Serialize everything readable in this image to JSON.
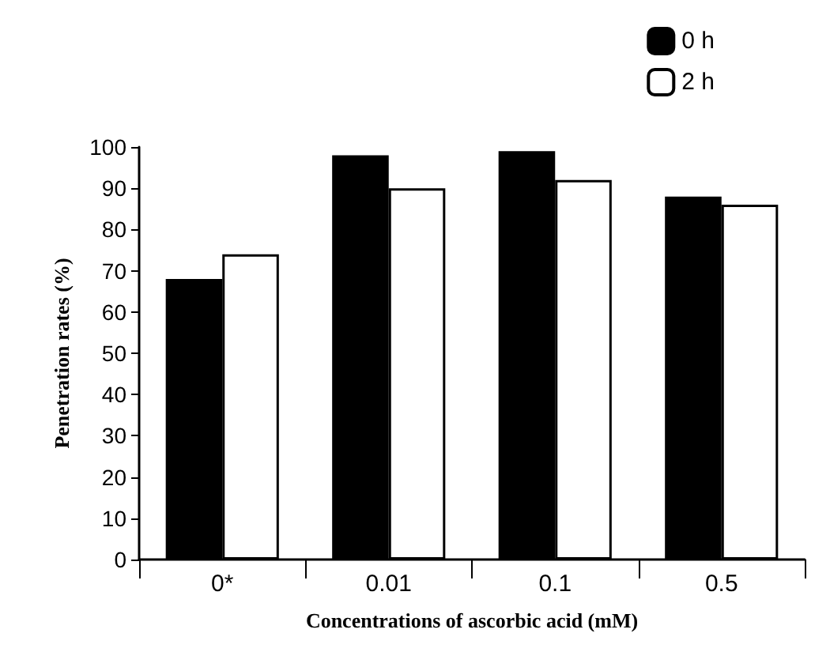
{
  "chart_data": {
    "type": "bar",
    "xlabel": "Concentrations of ascorbic acid (mM)",
    "ylabel": "Penetration rates (%)",
    "categories": [
      "0*",
      "0.01",
      "0.1",
      "0.5"
    ],
    "series": [
      {
        "name": "0 h",
        "color": "#000000",
        "values": [
          68,
          98,
          99,
          88
        ]
      },
      {
        "name": "2 h",
        "color": "#ffffff",
        "values": [
          74,
          90,
          92,
          86
        ]
      }
    ],
    "ylim": [
      0,
      100
    ],
    "yticks": [
      0,
      10,
      20,
      30,
      40,
      50,
      60,
      70,
      80,
      90,
      100
    ],
    "grid": false,
    "legend": "top right"
  }
}
